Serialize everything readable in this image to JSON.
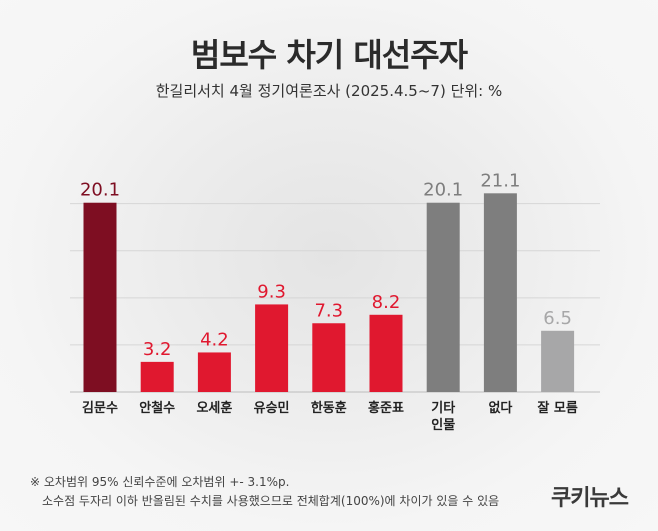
{
  "header": {
    "title": "범보수 차기 대선주자",
    "subtitle": "한길리서치 4월 정기여론조사 (2025.4.5~7) 단위: %"
  },
  "chart_data": {
    "type": "bar",
    "categories": [
      "김문수",
      "안철수",
      "오세훈",
      "유승민",
      "한동훈",
      "홍준표",
      "기타\n인물",
      "없다",
      "잘 모름"
    ],
    "values": [
      20.1,
      3.2,
      4.2,
      9.3,
      7.3,
      8.2,
      20.1,
      21.1,
      6.5
    ],
    "value_labels": [
      "20.1",
      "3.2",
      "4.2",
      "9.3",
      "7.3",
      "8.2",
      "20.1",
      "21.1",
      "6.5"
    ],
    "bar_colors": [
      "#7e0e22",
      "#e0182f",
      "#e0182f",
      "#e0182f",
      "#e0182f",
      "#e0182f",
      "#7e7e7e",
      "#7e7e7e",
      "#a7a7a8"
    ],
    "label_colors": [
      "#7e0e22",
      "#e0182f",
      "#e0182f",
      "#e0182f",
      "#e0182f",
      "#e0182f",
      "#7e7e7e",
      "#7e7e7e",
      "#a7a7a8"
    ],
    "ylim": [
      0,
      24
    ],
    "grid": true
  },
  "footer": {
    "note1": "※ 오차범위 95% 신뢰수준에 오차범위 +- 3.1%p.",
    "note2": "소수점 두자리 이하 반올림된 수치를 사용했으므로 전체합계(100%)에 차이가 있을 수 있음",
    "logo": "쿠키뉴스"
  }
}
